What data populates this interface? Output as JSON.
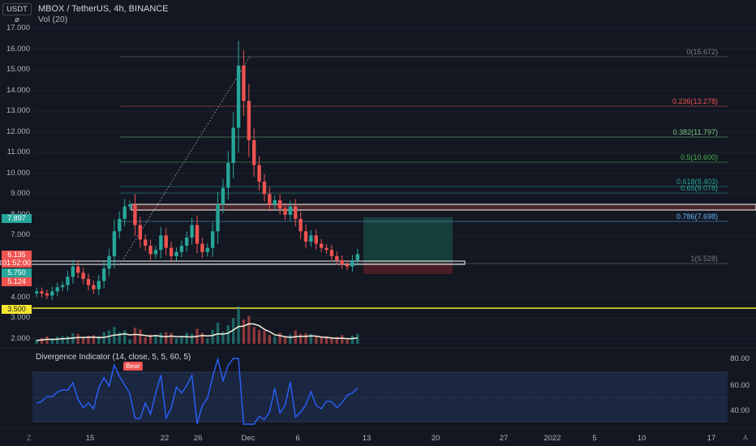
{
  "header": {
    "currency_badge": "USDT ⌀",
    "symbol_line": "MBOX / TetherUS, 4h, BINANCE",
    "volume_label": "Vol (20)"
  },
  "y_axis": [
    "17.000",
    "16.000",
    "15.000",
    "14.000",
    "13.000",
    "12.000",
    "11.000",
    "10.000",
    "9.000",
    "8.000",
    "7.000",
    "6.000",
    "5.000",
    "4.000",
    "3.000",
    "2.000"
  ],
  "price_tags": [
    {
      "label": "7.897",
      "color": "#26a69a",
      "text_color": "#ffffff"
    },
    {
      "label": "6.135",
      "color": "#ef5350",
      "text_color": "#ffffff"
    },
    {
      "label": "01:52:00",
      "color": "#ef5350",
      "text_color": "#ffffff"
    },
    {
      "label": "5.750",
      "color": "#26a69a",
      "text_color": "#ffffff"
    },
    {
      "label": "5.124",
      "color": "#ef5350",
      "text_color": "#ffffff"
    },
    {
      "label": "3.500",
      "color": "#f5e52e",
      "text_color": "#131722"
    }
  ],
  "fib_levels": [
    {
      "label": "0(15.672)",
      "color": "#787b86"
    },
    {
      "label": "0.236(13.278)",
      "color": "#ef5350"
    },
    {
      "label": "0.382(11.797)",
      "color": "#81c784"
    },
    {
      "label": "0.5(10.600)",
      "color": "#4caf50"
    },
    {
      "label": "0.618(9.403)",
      "color": "#26a69a"
    },
    {
      "label": "0.65(9.078)",
      "color": "#26a69a"
    },
    {
      "label": "0.786(7.698)",
      "color": "#64b5f6"
    },
    {
      "label": "1(5.528)",
      "color": "#787b86"
    }
  ],
  "indicator": {
    "title": "Divergence Indicator (14, close, 5, 5, 60, 5)",
    "y_axis": [
      "80.00",
      "60.00",
      "40.00"
    ],
    "bear_label": "Bear"
  },
  "time_axis": [
    "15",
    "22",
    "26",
    "Dec",
    "6",
    "13",
    "20",
    "27",
    "2022",
    "5",
    "10",
    "17"
  ],
  "corner_left": "Z",
  "corner_right": "A",
  "colors": {
    "up": "#26a69a",
    "down": "#ef5350",
    "rsi": "#2962ff",
    "band": "#1e2a4a",
    "sr_line": "#f5e52e"
  },
  "chart_data": {
    "type": "candlestick",
    "title": "MBOX / TetherUS, 4h, BINANCE",
    "close_series_approx": [
      4.3,
      4.2,
      4.1,
      4.3,
      4.5,
      4.6,
      5.0,
      5.5,
      5.2,
      4.9,
      4.6,
      4.4,
      4.8,
      5.4,
      6.0,
      7.2,
      7.8,
      8.4,
      8.5,
      7.5,
      6.8,
      6.5,
      6.1,
      6.3,
      7.0,
      6.4,
      6.0,
      6.2,
      6.5,
      6.9,
      7.5,
      6.6,
      6.2,
      6.4,
      7.2,
      8.5,
      9.3,
      10.5,
      12.2,
      15.2,
      13.5,
      11.6,
      10.4,
      9.6,
      9.0,
      8.5,
      8.7,
      8.3,
      8.0,
      8.4,
      7.8,
      7.2,
      6.7,
      7.0,
      6.6,
      6.4,
      6.3,
      6.0,
      5.8,
      5.6,
      5.5,
      5.8,
      6.1
    ],
    "ylim": [
      1.7,
      17.5
    ]
  }
}
